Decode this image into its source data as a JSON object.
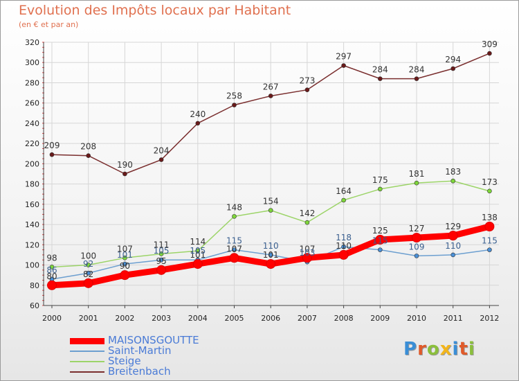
{
  "title": "Evolution des Impôts locaux par Habitant",
  "subtitle": "(en € et par an)",
  "logo": {
    "text": "Proxiti",
    "colors": [
      "#3a8ed6",
      "#e05a2a",
      "#8bbf3c",
      "#f2b51c",
      "#3a8ed6",
      "#e05a2a",
      "#8bbf3c"
    ]
  },
  "chart_data": {
    "type": "line",
    "title": "Evolution des Impôts locaux par Habitant",
    "subtitle": "(en € et par an)",
    "xlabel": "",
    "ylabel": "",
    "categories": [
      "2000",
      "2001",
      "2002",
      "2003",
      "2004",
      "2005",
      "2006",
      "2007",
      "2008",
      "2009",
      "2010",
      "2011",
      "2012"
    ],
    "ylim": [
      60,
      320
    ],
    "yticks": [
      60,
      80,
      100,
      120,
      140,
      160,
      180,
      200,
      220,
      240,
      260,
      280,
      300,
      320
    ],
    "grid": true,
    "legend_position": "bottom-left",
    "series": [
      {
        "name": "MAISONSGOUTTE",
        "color": "#ff0000",
        "marker_fill": "#ff0000",
        "values": [
          80,
          82,
          90,
          95,
          101,
          107,
          101,
          107,
          110,
          125,
          127,
          129,
          138
        ],
        "labels": [
          "80",
          "82",
          "90",
          "95",
          "101",
          "107",
          "101",
          "107",
          "110",
          "125",
          "127",
          "129",
          "138"
        ]
      },
      {
        "name": "Saint-Martin",
        "color": "#6c9fd0",
        "marker_fill": "#4a8fd6",
        "values": [
          86,
          92,
          101,
          105,
          105,
          115,
          110,
          103,
          118,
          115,
          109,
          110,
          115
        ],
        "labels": [
          "86",
          "92",
          "101",
          "105",
          "105",
          "115",
          "110",
          "103",
          "118",
          "115",
          "109",
          "110",
          "115"
        ]
      },
      {
        "name": "Steige",
        "color": "#9cd468",
        "marker_fill": "#7ed63a",
        "values": [
          98,
          100,
          107,
          111,
          114,
          148,
          154,
          142,
          164,
          175,
          181,
          183,
          173
        ],
        "labels": [
          "98",
          "100",
          "107",
          "111",
          "114",
          "148",
          "154",
          "142",
          "164",
          "175",
          "181",
          "183",
          "173"
        ]
      },
      {
        "name": "Breitenbach",
        "color": "#7a2e2e",
        "marker_fill": "#6a1a1a",
        "values": [
          209,
          208,
          190,
          204,
          240,
          258,
          267,
          273,
          297,
          284,
          284,
          294,
          309
        ],
        "labels": [
          "209",
          "208",
          "190",
          "204",
          "240",
          "258",
          "267",
          "273",
          "297",
          "284",
          "284",
          "294",
          "309"
        ]
      }
    ]
  }
}
